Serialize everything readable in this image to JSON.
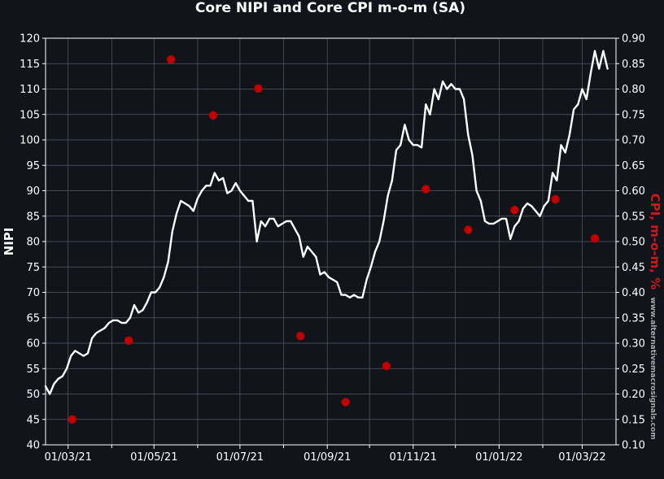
{
  "chart_data": {
    "type": "line",
    "title": "Core NIPI and Core CPI m-o-m (SA)",
    "left_axis": {
      "label": "NIPI",
      "range": [
        40,
        120
      ],
      "ticks": [
        "40",
        "45",
        "50",
        "55",
        "60",
        "65",
        "70",
        "75",
        "80",
        "85",
        "90",
        "95",
        "100",
        "105",
        "110",
        "115",
        "120"
      ]
    },
    "right_axis": {
      "label": "CPI, m-o-m, %",
      "range": [
        0.1,
        0.9
      ],
      "ticks": [
        "0.10",
        "0.15",
        "0.20",
        "0.25",
        "0.30",
        "0.35",
        "0.40",
        "0.45",
        "0.50",
        "0.55",
        "0.60",
        "0.65",
        "0.70",
        "0.75",
        "0.80",
        "0.85",
        "0.90"
      ]
    },
    "x_axis": {
      "range": [
        "2021-02-13",
        "2022-03-25"
      ],
      "tick_labels": [
        "01/03/21",
        "01/05/21",
        "01/07/21",
        "01/09/21",
        "01/11/21",
        "01/01/22",
        "01/03/22"
      ],
      "tick_dates": [
        "2021-03-01",
        "2021-05-01",
        "2021-07-01",
        "2021-09-01",
        "2021-11-01",
        "2022-01-01",
        "2022-03-01"
      ],
      "minor_tick_dates": [
        "2021-02-01",
        "2021-04-01",
        "2021-06-01",
        "2021-08-01",
        "2021-10-01",
        "2021-12-01",
        "2022-02-01"
      ]
    },
    "grid": true,
    "colors": {
      "nipi": "#ffffff",
      "cpi": "#c00000",
      "background": "#12141c",
      "grid": "#555a63"
    },
    "series": [
      {
        "axis": "left",
        "style": "line",
        "points": [
          [
            "2021-02-13",
            51.5
          ],
          [
            "2021-02-16",
            50
          ],
          [
            "2021-02-19",
            52
          ],
          [
            "2021-02-22",
            53
          ],
          [
            "2021-02-25",
            53.5
          ],
          [
            "2021-02-28",
            55
          ],
          [
            "2021-03-03",
            57.5
          ],
          [
            "2021-03-06",
            58.5
          ],
          [
            "2021-03-09",
            58
          ],
          [
            "2021-03-12",
            57.5
          ],
          [
            "2021-03-15",
            58
          ],
          [
            "2021-03-18",
            61
          ],
          [
            "2021-03-21",
            62
          ],
          [
            "2021-03-24",
            62.5
          ],
          [
            "2021-03-27",
            63
          ],
          [
            "2021-03-30",
            64
          ],
          [
            "2021-04-02",
            64.5
          ],
          [
            "2021-04-05",
            64.5
          ],
          [
            "2021-04-08",
            64
          ],
          [
            "2021-04-11",
            64
          ],
          [
            "2021-04-14",
            65
          ],
          [
            "2021-04-17",
            67.5
          ],
          [
            "2021-04-20",
            66
          ],
          [
            "2021-04-23",
            66.5
          ],
          [
            "2021-04-26",
            68
          ],
          [
            "2021-04-29",
            70
          ],
          [
            "2021-05-02",
            70
          ],
          [
            "2021-05-05",
            71
          ],
          [
            "2021-05-08",
            73
          ],
          [
            "2021-05-11",
            76
          ],
          [
            "2021-05-14",
            82
          ],
          [
            "2021-05-17",
            85.5
          ],
          [
            "2021-05-20",
            88
          ],
          [
            "2021-05-23",
            87.5
          ],
          [
            "2021-05-26",
            87
          ],
          [
            "2021-05-29",
            86
          ],
          [
            "2021-06-01",
            88.5
          ],
          [
            "2021-06-04",
            90
          ],
          [
            "2021-06-07",
            91
          ],
          [
            "2021-06-10",
            91
          ],
          [
            "2021-06-13",
            93.5
          ],
          [
            "2021-06-16",
            92
          ],
          [
            "2021-06-19",
            92.5
          ],
          [
            "2021-06-22",
            89.5
          ],
          [
            "2021-06-25",
            90
          ],
          [
            "2021-06-28",
            91.5
          ],
          [
            "2021-07-01",
            90
          ],
          [
            "2021-07-04",
            89
          ],
          [
            "2021-07-07",
            88
          ],
          [
            "2021-07-10",
            88
          ],
          [
            "2021-07-13",
            80
          ],
          [
            "2021-07-16",
            84
          ],
          [
            "2021-07-19",
            83
          ],
          [
            "2021-07-22",
            84.5
          ],
          [
            "2021-07-25",
            84.5
          ],
          [
            "2021-07-28",
            83
          ],
          [
            "2021-07-31",
            83.5
          ],
          [
            "2021-08-03",
            84
          ],
          [
            "2021-08-06",
            84
          ],
          [
            "2021-08-09",
            82.5
          ],
          [
            "2021-08-12",
            81
          ],
          [
            "2021-08-15",
            77
          ],
          [
            "2021-08-18",
            79
          ],
          [
            "2021-08-21",
            78
          ],
          [
            "2021-08-24",
            77
          ],
          [
            "2021-08-27",
            73.5
          ],
          [
            "2021-08-30",
            74
          ],
          [
            "2021-09-02",
            73
          ],
          [
            "2021-09-05",
            72.5
          ],
          [
            "2021-09-08",
            72
          ],
          [
            "2021-09-11",
            69.5
          ],
          [
            "2021-09-14",
            69.5
          ],
          [
            "2021-09-17",
            69
          ],
          [
            "2021-09-20",
            69.5
          ],
          [
            "2021-09-23",
            69
          ],
          [
            "2021-09-26",
            69
          ],
          [
            "2021-09-29",
            72.5
          ],
          [
            "2021-10-02",
            75
          ],
          [
            "2021-10-05",
            78
          ],
          [
            "2021-10-08",
            80
          ],
          [
            "2021-10-11",
            84
          ],
          [
            "2021-10-14",
            89
          ],
          [
            "2021-10-17",
            92
          ],
          [
            "2021-10-20",
            98
          ],
          [
            "2021-10-23",
            99
          ],
          [
            "2021-10-26",
            103
          ],
          [
            "2021-10-29",
            100
          ],
          [
            "2021-11-01",
            99
          ],
          [
            "2021-11-04",
            99
          ],
          [
            "2021-11-07",
            98.5
          ],
          [
            "2021-11-10",
            107
          ],
          [
            "2021-11-13",
            105
          ],
          [
            "2021-11-16",
            110
          ],
          [
            "2021-11-19",
            108
          ],
          [
            "2021-11-22",
            111.5
          ],
          [
            "2021-11-25",
            110
          ],
          [
            "2021-11-28",
            111
          ],
          [
            "2021-12-01",
            110
          ],
          [
            "2021-12-04",
            110
          ],
          [
            "2021-12-07",
            108
          ],
          [
            "2021-12-10",
            101
          ],
          [
            "2021-12-13",
            97
          ],
          [
            "2021-12-16",
            90
          ],
          [
            "2021-12-19",
            88
          ],
          [
            "2021-12-22",
            84
          ],
          [
            "2021-12-25",
            83.5
          ],
          [
            "2021-12-28",
            83.5
          ],
          [
            "2021-12-31",
            84
          ],
          [
            "2022-01-03",
            84.5
          ],
          [
            "2022-01-06",
            84.5
          ],
          [
            "2022-01-09",
            80.5
          ],
          [
            "2022-01-12",
            83
          ],
          [
            "2022-01-15",
            84
          ],
          [
            "2022-01-18",
            86.5
          ],
          [
            "2022-01-21",
            87.5
          ],
          [
            "2022-01-24",
            87
          ],
          [
            "2022-01-27",
            86
          ],
          [
            "2022-01-30",
            85
          ],
          [
            "2022-02-02",
            87
          ],
          [
            "2022-02-05",
            88
          ],
          [
            "2022-02-08",
            93.5
          ],
          [
            "2022-02-11",
            92
          ],
          [
            "2022-02-14",
            99
          ],
          [
            "2022-02-17",
            97.5
          ],
          [
            "2022-02-20",
            101
          ],
          [
            "2022-02-23",
            106
          ],
          [
            "2022-02-26",
            107
          ],
          [
            "2022-03-01",
            110
          ],
          [
            "2022-03-04",
            108
          ],
          [
            "2022-03-07",
            113
          ],
          [
            "2022-03-10",
            117.5
          ],
          [
            "2022-03-13",
            114
          ],
          [
            "2022-03-16",
            117.5
          ],
          [
            "2022-03-19",
            114
          ]
        ]
      },
      {
        "axis": "right",
        "style": "scatter",
        "points": [
          [
            "2021-03-04",
            0.15
          ],
          [
            "2021-04-13",
            0.305
          ],
          [
            "2021-05-13",
            0.858
          ],
          [
            "2021-06-12",
            0.748
          ],
          [
            "2021-07-14",
            0.801
          ],
          [
            "2021-08-13",
            0.314
          ],
          [
            "2021-09-14",
            0.184
          ],
          [
            "2021-10-13",
            0.255
          ],
          [
            "2021-11-10",
            0.603
          ],
          [
            "2021-12-10",
            0.523
          ],
          [
            "2022-01-12",
            0.562
          ],
          [
            "2022-02-10",
            0.583
          ],
          [
            "2022-03-10",
            0.506
          ]
        ]
      }
    ]
  },
  "watermark": "www.alternativemacrosignals.com"
}
